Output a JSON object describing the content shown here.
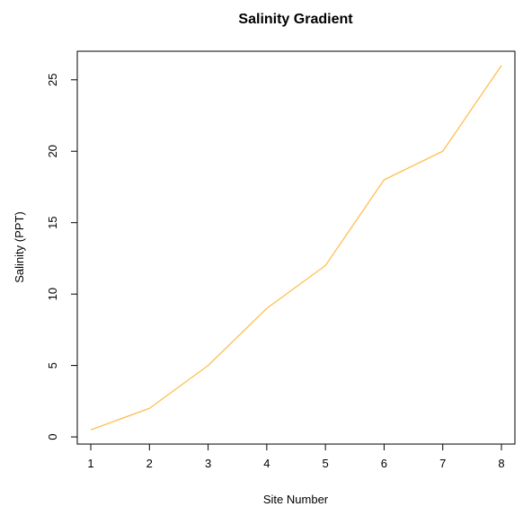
{
  "chart_data": {
    "type": "line",
    "title": "Salinity Gradient",
    "xlabel": "Site Number",
    "ylabel": "Salinity (PPT)",
    "x": [
      1,
      2,
      3,
      4,
      5,
      6,
      7,
      8
    ],
    "series": [
      {
        "values": [
          0.5,
          2,
          5,
          9,
          12,
          18,
          20,
          26
        ],
        "color": "#FFBF50"
      }
    ],
    "xlim": [
      0.77,
      8.23
    ],
    "ylim": [
      -0.5,
      27.0
    ],
    "x_ticks": [
      1,
      2,
      3,
      4,
      5,
      6,
      7,
      8
    ],
    "y_ticks": [
      0,
      5,
      10,
      15,
      20,
      25
    ],
    "grid": false,
    "legend": "none"
  }
}
